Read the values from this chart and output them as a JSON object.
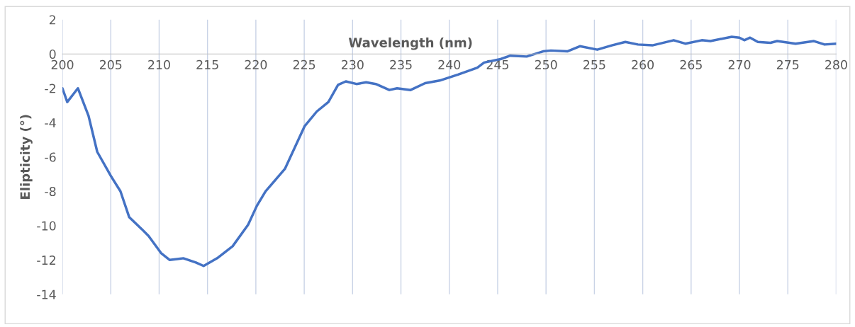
{
  "chart_data": {
    "type": "line",
    "xlabel": "Wavelength (nm)",
    "ylabel": "Elipticity (°)",
    "xlim": [
      200,
      280
    ],
    "xticks": [
      200,
      205,
      210,
      215,
      220,
      225,
      230,
      235,
      240,
      245,
      250,
      255,
      260,
      265,
      270,
      275,
      280
    ],
    "ylim": [
      -14,
      2
    ],
    "yticks": [
      2,
      0,
      -2,
      -4,
      -6,
      -8,
      -10,
      -12,
      -14
    ],
    "grid": "x",
    "marker": "none",
    "line_style": "solid",
    "series": [
      {
        "color": "#4472c4",
        "x": [
          200,
          200.5,
          201.6,
          202.7,
          203.6,
          205.0,
          206.0,
          206.9,
          208.2,
          208.9,
          210.2,
          211.1,
          212.5,
          213.8,
          214.6,
          216.0,
          217.6,
          219.2,
          220.1,
          221.0,
          223.0,
          225.05,
          226.3,
          227.5,
          228.5,
          229.3,
          230.4,
          231.4,
          232.4,
          233.8,
          234.6,
          236.0,
          237.5,
          239.0,
          240.9,
          242.9,
          243.6,
          245.3,
          246.3,
          248.0,
          249.7,
          250.5,
          252.2,
          253.5,
          255.3,
          256.8,
          258.2,
          259.5,
          261.0,
          263.2,
          264.4,
          266.1,
          267.0,
          269.2,
          270.0,
          270.5,
          271.1,
          271.9,
          273.2,
          273.9,
          275.8,
          277.7,
          278.8,
          280
        ],
        "values": [
          -2.0,
          -2.8,
          -2.0,
          -3.6,
          -5.7,
          -7.1,
          -8.0,
          -9.5,
          -10.2,
          -10.6,
          -11.6,
          -12.0,
          -11.9,
          -12.15,
          -12.35,
          -11.9,
          -11.2,
          -9.95,
          -8.85,
          -8.0,
          -6.7,
          -4.2,
          -3.35,
          -2.8,
          -1.8,
          -1.6,
          -1.75,
          -1.65,
          -1.75,
          -2.1,
          -2.0,
          -2.1,
          -1.7,
          -1.55,
          -1.2,
          -0.8,
          -0.5,
          -0.3,
          -0.1,
          -0.15,
          0.15,
          0.2,
          0.15,
          0.45,
          0.25,
          0.5,
          0.7,
          0.55,
          0.5,
          0.8,
          0.6,
          0.8,
          0.75,
          1.0,
          0.95,
          0.8,
          0.95,
          0.7,
          0.65,
          0.75,
          0.6,
          0.75,
          0.55,
          0.6
        ]
      }
    ]
  }
}
